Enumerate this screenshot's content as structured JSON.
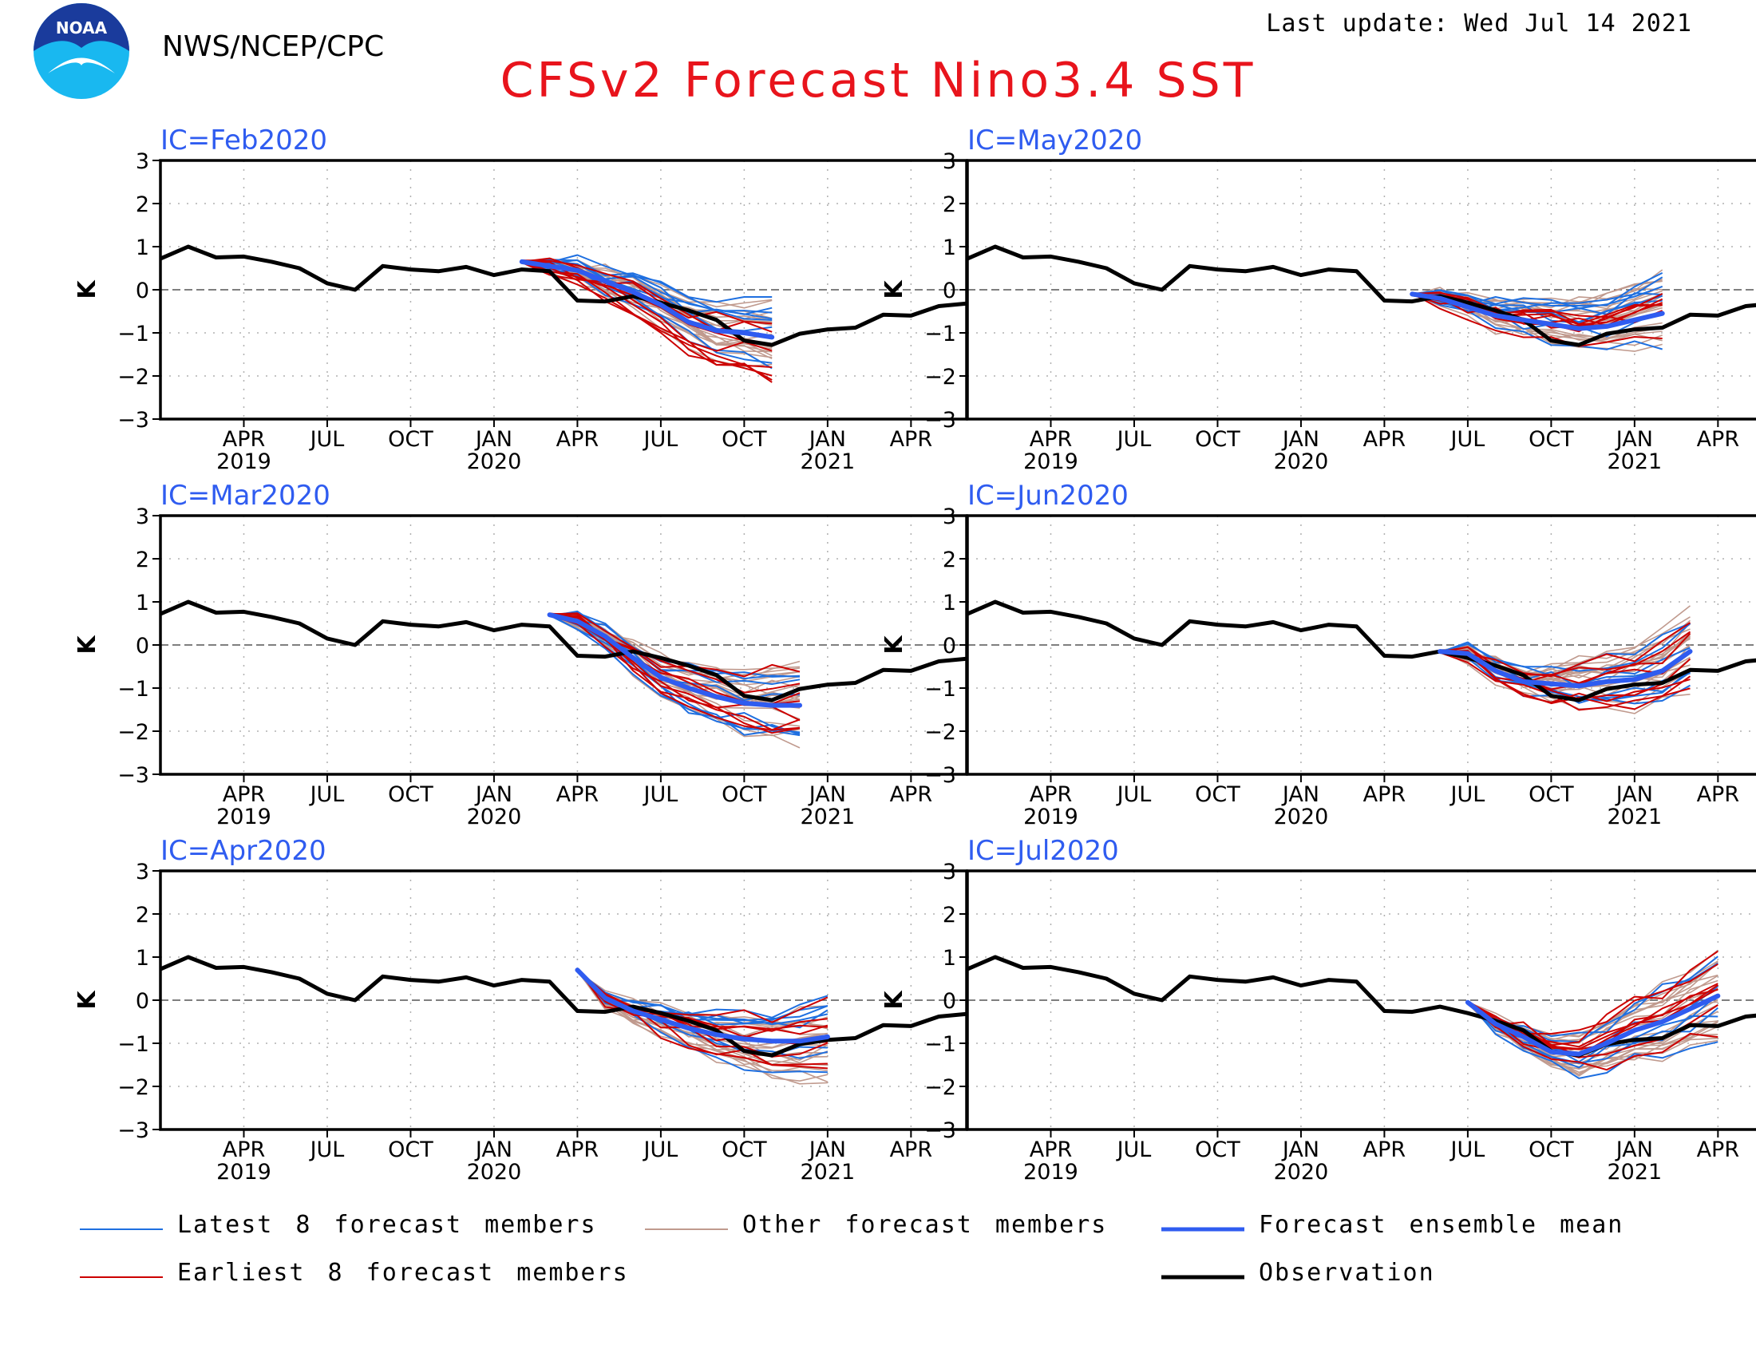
{
  "header": {
    "logo_text": "NOAA",
    "org": "NWS/NCEP/CPC",
    "title": "CFSv2 Forecast Nino3.4 SST",
    "last_update": "Last update: Wed Jul 14 2021"
  },
  "colors": {
    "title": "#e8141c",
    "latest": "#1e6fe0",
    "earliest": "#cc0000",
    "other": "#c09a8e",
    "mean": "#2f5cf0",
    "observation": "#000000",
    "panel_title": "#2f5cf0"
  },
  "legend": {
    "latest": "Latest 8 forecast members",
    "other": "Other forecast members",
    "mean": "Forecast ensemble mean",
    "earliest": "Earliest 8 forecast members",
    "observation": "Observation"
  },
  "chart_data": {
    "type": "line",
    "ylabel": "K",
    "ylim": [
      -3,
      3
    ],
    "yticks": [
      "3",
      "2",
      "1",
      "0",
      "−1",
      "−2",
      "−3"
    ],
    "x_tick_months": [
      {
        "month": "2019-04",
        "label": "APR",
        "year": "2019"
      },
      {
        "month": "2019-07",
        "label": "JUL",
        "year": ""
      },
      {
        "month": "2019-10",
        "label": "OCT",
        "year": ""
      },
      {
        "month": "2020-01",
        "label": "JAN",
        "year": "2020"
      },
      {
        "month": "2020-04",
        "label": "APR",
        "year": ""
      },
      {
        "month": "2020-07",
        "label": "JUL",
        "year": ""
      },
      {
        "month": "2020-10",
        "label": "OCT",
        "year": ""
      },
      {
        "month": "2021-01",
        "label": "JAN",
        "year": "2021"
      },
      {
        "month": "2021-04",
        "label": "APR",
        "year": ""
      }
    ],
    "xlim": [
      "2019-01",
      "2021-06"
    ],
    "grid": true,
    "observation": {
      "months": [
        "2019-01",
        "2019-02",
        "2019-03",
        "2019-04",
        "2019-05",
        "2019-06",
        "2019-07",
        "2019-08",
        "2019-09",
        "2019-10",
        "2019-11",
        "2019-12",
        "2020-01",
        "2020-02",
        "2020-03",
        "2020-04",
        "2020-05",
        "2020-06",
        "2020-07",
        "2020-08",
        "2020-09",
        "2020-10",
        "2020-11",
        "2020-12",
        "2021-01",
        "2021-02",
        "2021-03",
        "2021-04",
        "2021-05",
        "2021-06"
      ],
      "values": [
        0.72,
        1.0,
        0.75,
        0.77,
        0.65,
        0.5,
        0.15,
        0.0,
        0.55,
        0.47,
        0.43,
        0.53,
        0.34,
        0.47,
        0.43,
        -0.25,
        -0.27,
        -0.15,
        -0.3,
        -0.48,
        -0.7,
        -1.18,
        -1.28,
        -1.02,
        -0.92,
        -0.88,
        -0.58,
        -0.6,
        -0.38,
        -0.32
      ]
    },
    "panels": [
      {
        "ic": "IC=Feb2020",
        "ens_mean": {
          "months": [
            "2020-02",
            "2020-03",
            "2020-04",
            "2020-05",
            "2020-06",
            "2020-07",
            "2020-08",
            "2020-09",
            "2020-10",
            "2020-11"
          ],
          "values": [
            0.65,
            0.55,
            0.45,
            0.2,
            -0.05,
            -0.35,
            -0.75,
            -0.95,
            -1.0,
            -1.1
          ]
        }
      },
      {
        "ic": "IC=May2020",
        "ens_mean": {
          "months": [
            "2020-05",
            "2020-06",
            "2020-07",
            "2020-08",
            "2020-09",
            "2020-10",
            "2020-11",
            "2020-12",
            "2021-01",
            "2021-02"
          ],
          "values": [
            -0.1,
            -0.2,
            -0.4,
            -0.6,
            -0.7,
            -0.8,
            -0.9,
            -0.85,
            -0.7,
            -0.55
          ]
        }
      },
      {
        "ic": "IC=Mar2020",
        "ens_mean": {
          "months": [
            "2020-03",
            "2020-04",
            "2020-05",
            "2020-06",
            "2020-07",
            "2020-08",
            "2020-09",
            "2020-10",
            "2020-11",
            "2020-12"
          ],
          "values": [
            0.7,
            0.55,
            0.2,
            -0.3,
            -0.75,
            -1.0,
            -1.2,
            -1.35,
            -1.4,
            -1.4
          ]
        }
      },
      {
        "ic": "IC=Jun2020",
        "ens_mean": {
          "months": [
            "2020-06",
            "2020-07",
            "2020-08",
            "2020-09",
            "2020-10",
            "2020-11",
            "2020-12",
            "2021-01",
            "2021-02",
            "2021-03"
          ],
          "values": [
            -0.15,
            -0.2,
            -0.6,
            -0.85,
            -0.9,
            -0.95,
            -0.85,
            -0.8,
            -0.6,
            -0.15
          ]
        }
      },
      {
        "ic": "IC=Apr2020",
        "ens_mean": {
          "months": [
            "2020-04",
            "2020-05",
            "2020-06",
            "2020-07",
            "2020-08",
            "2020-09",
            "2020-10",
            "2020-11",
            "2020-12",
            "2021-01"
          ],
          "values": [
            0.7,
            0.05,
            -0.25,
            -0.45,
            -0.65,
            -0.8,
            -0.9,
            -0.95,
            -0.95,
            -0.85
          ]
        }
      },
      {
        "ic": "IC=Jul2020",
        "ens_mean": {
          "months": [
            "2020-07",
            "2020-08",
            "2020-09",
            "2020-10",
            "2020-11",
            "2020-12",
            "2021-01",
            "2021-02",
            "2021-03",
            "2021-04"
          ],
          "values": [
            -0.05,
            -0.55,
            -0.85,
            -1.2,
            -1.25,
            -1.0,
            -0.7,
            -0.5,
            -0.2,
            0.1
          ]
        }
      }
    ]
  }
}
